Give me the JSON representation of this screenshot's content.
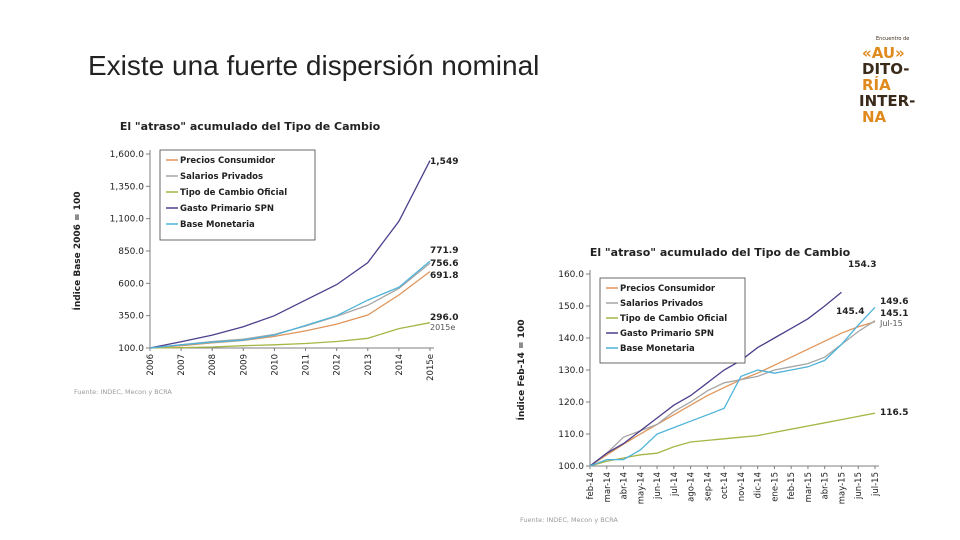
{
  "slide": {
    "title": "Existe una fuerte dispersión nominal"
  },
  "logo": {
    "top_text": "Encuentro de",
    "lines": [
      "«AU»",
      "DITO-",
      "RÍA",
      "INTER-",
      "NA"
    ],
    "colors": {
      "primary": "#e08a1e",
      "dark": "#3a2a1a"
    }
  },
  "colors": {
    "Precios Consumidor": "#e0955a",
    "Salarios Privados": "#a6a6a6",
    "Tipo de Cambio Oficial": "#a7b545",
    "Gasto Primario SPN": "#4b3f8c",
    "Base Monetaria": "#4fb3d9",
    "axis": "#7f7f7f",
    "text": "#222222"
  },
  "chart_data": [
    {
      "type": "line",
      "title": "El \"atraso\" acumulado del Tipo de Cambio",
      "ylabel": "Índice Base 2006 = 100",
      "xlabel": "",
      "categories": [
        "2006",
        "2007",
        "2008",
        "2009",
        "2010",
        "2011",
        "2012",
        "2013",
        "2014",
        "2015e"
      ],
      "ylim": [
        100,
        1600
      ],
      "yticks": [
        "1,600.0",
        "1,350.0",
        "1,100.0",
        "850.0",
        "600.0",
        "350.0",
        "100.0"
      ],
      "legend_position": "top-left",
      "series": [
        {
          "name": "Precios Consumidor",
          "values": [
            100,
            118,
            140,
            158,
            190,
            232,
            285,
            355,
            510,
            691.8
          ]
        },
        {
          "name": "Salarios Privados",
          "values": [
            100,
            125,
            150,
            168,
            205,
            270,
            345,
            430,
            560,
            756.6
          ]
        },
        {
          "name": "Tipo de Cambio Oficial",
          "values": [
            100,
            103,
            108,
            118,
            125,
            135,
            150,
            175,
            250,
            296.0
          ]
        },
        {
          "name": "Gasto Primario SPN",
          "values": [
            100,
            148,
            200,
            265,
            350,
            470,
            590,
            760,
            1080,
            1549
          ]
        },
        {
          "name": "Base Monetaria",
          "values": [
            100,
            125,
            145,
            160,
            200,
            275,
            350,
            470,
            570,
            771.9
          ]
        }
      ],
      "end_labels": [
        {
          "series": "Gasto Primario SPN",
          "text": "1,549"
        },
        {
          "series": "Base Monetaria",
          "text": "771.9"
        },
        {
          "series": "Salarios Privados",
          "text": "756.6"
        },
        {
          "series": "Precios Consumidor",
          "text": "691.8"
        },
        {
          "series": "Tipo de Cambio Oficial",
          "text": "296.0"
        }
      ],
      "annotation": "2015e",
      "source": "Fuente: INDEC, Mecon y BCRA"
    },
    {
      "type": "line",
      "title": "El \"atraso\" acumulado del Tipo de Cambio",
      "ylabel": "Índice Feb-14 = 100",
      "xlabel": "",
      "categories": [
        "feb-14",
        "mar-14",
        "abr-14",
        "may-14",
        "jun-14",
        "jul-14",
        "ago-14",
        "sep-14",
        "oct-14",
        "nov-14",
        "dic-14",
        "ene-15",
        "feb-15",
        "mar-15",
        "abr-15",
        "may-15",
        "jun-15",
        "jul-15"
      ],
      "ylim": [
        100,
        160
      ],
      "yticks": [
        "160.0",
        "150.0",
        "140.0",
        "130.0",
        "120.0",
        "110.0",
        "100.0"
      ],
      "legend_position": "top-left",
      "series": [
        {
          "name": "Precios Consumidor",
          "values": [
            100,
            103.5,
            106.8,
            110,
            113,
            116,
            119,
            122,
            124.5,
            127,
            129,
            131.5,
            134,
            136.5,
            139,
            141.5,
            143.5,
            145.1
          ]
        },
        {
          "name": "Salarios Privados",
          "values": [
            100,
            104,
            109,
            111,
            113,
            117,
            120,
            123.5,
            126,
            127,
            128,
            130,
            131,
            132,
            134,
            138,
            142,
            145.4
          ]
        },
        {
          "name": "Tipo de Cambio Oficial",
          "values": [
            100,
            101.5,
            102.5,
            103.5,
            104,
            106,
            107.5,
            108,
            108.5,
            109,
            109.5,
            110.5,
            111.5,
            112.5,
            113.5,
            114.5,
            115.5,
            116.5
          ]
        },
        {
          "name": "Gasto Primario SPN",
          "values": [
            100,
            104,
            107,
            111,
            115,
            119,
            122,
            126,
            130,
            133,
            137,
            140,
            143,
            146,
            150,
            154.3,
            null,
            null
          ]
        },
        {
          "name": "Base Monetaria",
          "values": [
            100,
            102,
            102,
            105,
            110,
            112,
            114,
            116,
            118,
            128,
            130,
            129,
            130,
            131,
            133,
            138,
            144,
            149.6
          ]
        }
      ],
      "end_labels": [
        {
          "series": "Gasto Primario SPN",
          "text": "154.3"
        },
        {
          "series": "Base Monetaria",
          "text": "149.6"
        },
        {
          "series": "Salarios Privados",
          "text": "145.4"
        },
        {
          "series": "Precios Consumidor",
          "text": "145.1"
        },
        {
          "series": "Tipo de Cambio Oficial",
          "text": "116.5"
        }
      ],
      "annotation": "Jul-15",
      "source": "Fuente: INDEC, Mecon y BCRA"
    }
  ]
}
